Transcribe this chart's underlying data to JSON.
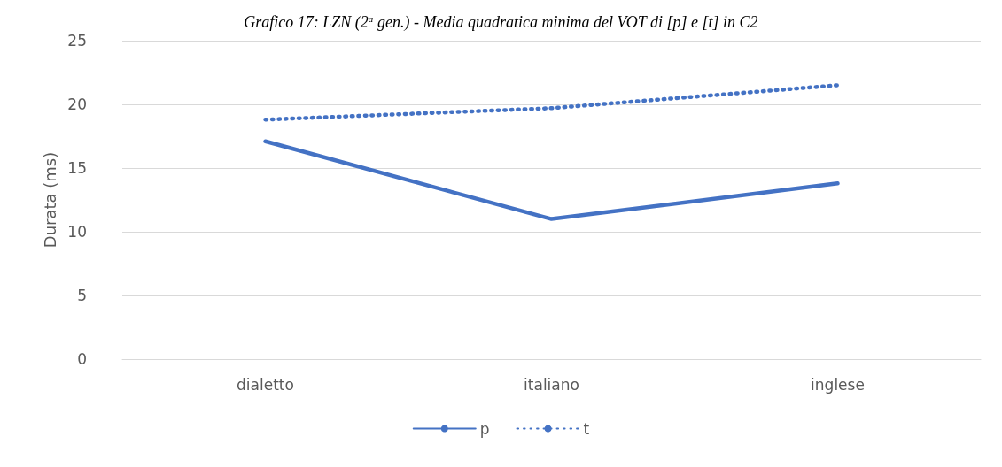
{
  "chart_data": {
    "type": "line",
    "title": "Grafico 17: LZN (2$^{a}$ gen.) - Media quadratica minima del VOT di [p] e [t] in C2",
    "ylabel": "Durata (ms)",
    "categories": [
      "dialetto",
      "italiano",
      "inglese"
    ],
    "series": [
      {
        "name": "p",
        "color": "#4472c4",
        "line_style": "solid",
        "values": [
          17.1,
          11.0,
          13.8
        ]
      },
      {
        "name": "t",
        "color": "#4472c4",
        "line_style": "dotted",
        "values": [
          18.8,
          19.7,
          21.5
        ]
      }
    ],
    "ylim": [
      0,
      25
    ],
    "yticks": [
      0,
      5,
      10,
      15,
      20,
      25
    ],
    "grid": "y",
    "legend": "bottom",
    "marker": "none"
  }
}
